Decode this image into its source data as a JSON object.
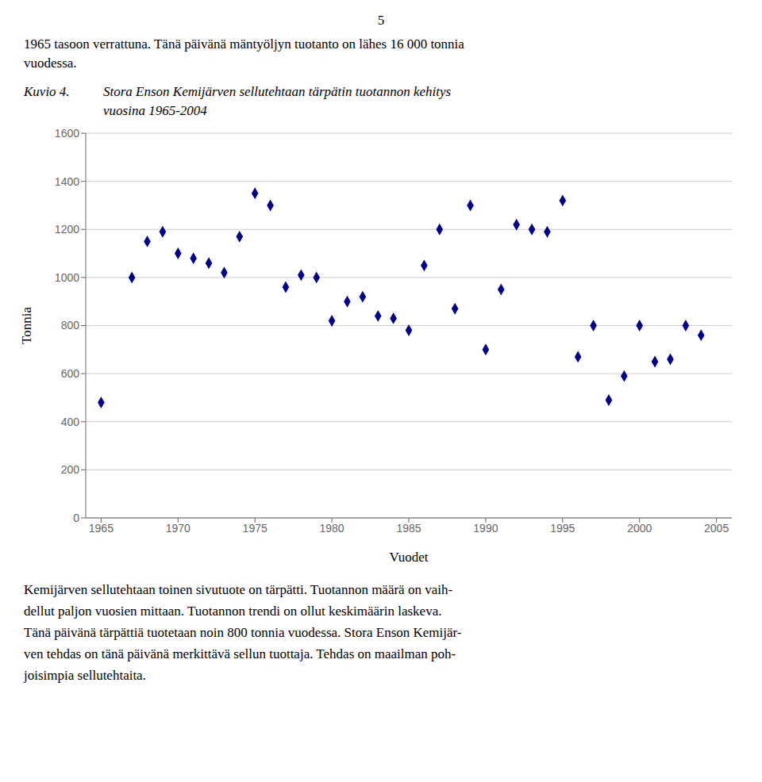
{
  "chart_data": {
    "type": "scatter",
    "title": [
      "Stora Enson Kemijärven sellutehtaan tärpätin tuotannon kehitys",
      "vuosina 1965-2004"
    ],
    "annotations": [
      "5",
      "1965 tasoon verrattuna. Tänä päivänä mäntyöljyn tuotanto on lähes 16 000 tonnia",
      "vuodessa.",
      "Kuvio 4.",
      "Kemijärven sellutehtaan toinen sivutuote on tärpätti. Tuotannon määrä on vaih-",
      "dellut paljon vuosien mittaan. Tuotannon trendi on ollut keskimäärin laskeva.",
      "Tänä päivänä tärpättiä tuotetaan noin 800 tonnia vuodessa. Stora Enson Kemijär-",
      "ven tehdas on tänä päivänä merkittävä sellun tuottaja. Tehdas on maailman poh-",
      "joisimpia sellutehtaita."
    ],
    "x_label": "Vuodet",
    "y_label": "Tonnia",
    "x": [
      1965,
      1967,
      1968,
      1969,
      1970,
      1971,
      1972,
      1973,
      1974,
      1975,
      1976,
      1977,
      1978,
      1979,
      1980,
      1981,
      1982,
      1983,
      1984,
      1985,
      1986,
      1987,
      1988,
      1989,
      1990,
      1991,
      1992,
      1993,
      1994,
      1995,
      1996,
      1997,
      1998,
      1999,
      2000,
      2001,
      2002,
      2003,
      2004
    ],
    "values": [
      480,
      1000,
      1150,
      1190,
      1100,
      1080,
      1060,
      1020,
      1170,
      1350,
      1300,
      960,
      1010,
      1000,
      820,
      900,
      920,
      840,
      830,
      780,
      1050,
      1200,
      870,
      1300,
      700,
      950,
      1220,
      1200,
      1190,
      1320,
      670,
      800,
      490,
      590,
      800,
      650,
      660,
      800,
      760
    ],
    "color": "#00008B",
    "marker": "diamond",
    "xlim": [
      1964,
      2006
    ],
    "xticks": [
      1965,
      1970,
      1975,
      1980,
      1985,
      1990,
      1995,
      2000,
      2005
    ],
    "ylim": [
      0,
      1600
    ],
    "yticks": [
      0,
      200,
      400,
      600,
      800,
      1000,
      1200,
      1400,
      1600
    ],
    "grid": "y"
  }
}
